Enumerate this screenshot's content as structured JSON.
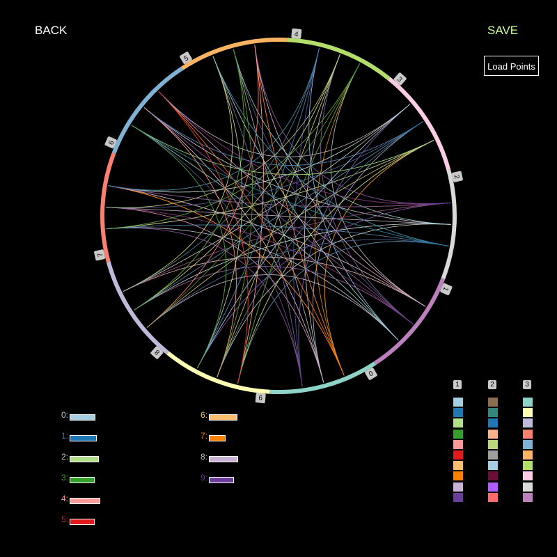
{
  "header": {
    "back_label": "BACK",
    "save_label": "SAVE",
    "load_label": "Load Points"
  },
  "ring": {
    "segments": [
      {
        "label": "0",
        "color": "#8dd3c7"
      },
      {
        "label": "1",
        "color": "#bc80bd"
      },
      {
        "label": "2",
        "color": "#d9d9d9"
      },
      {
        "label": "3",
        "color": "#fccde5"
      },
      {
        "label": "4",
        "color": "#b3de69"
      },
      {
        "label": "5",
        "color": "#fdb462"
      },
      {
        "label": "6",
        "color": "#80b1d3"
      },
      {
        "label": "7",
        "color": "#fb8072"
      },
      {
        "label": "8",
        "color": "#bebada"
      },
      {
        "label": "9",
        "color": "#ffffb3"
      }
    ],
    "markers": [
      "0",
      "1",
      "2",
      "3",
      "4",
      "5",
      "6",
      "7",
      "8",
      "9"
    ]
  },
  "legend": [
    {
      "label": "0:",
      "color": "#a6cee3"
    },
    {
      "label": "1:",
      "color": "#1f78b4"
    },
    {
      "label": "2:",
      "color": "#b2df8a"
    },
    {
      "label": "3:",
      "color": "#33a02c"
    },
    {
      "label": "4:",
      "color": "#fb9a99"
    },
    {
      "label": "5:",
      "color": "#e31a1c"
    },
    {
      "label": "6:",
      "color": "#fdbf6f"
    },
    {
      "label": "7:",
      "color": "#ff7f00"
    },
    {
      "label": "8:",
      "color": "#cab2d6"
    },
    {
      "label": "9:",
      "color": "#6a3d9a"
    }
  ],
  "legend_fill": [
    0.78,
    0.82,
    0.87,
    0.75,
    0.92,
    0.75,
    0.85,
    0.5,
    0.88,
    0.75
  ],
  "palettes": [
    {
      "label": "1",
      "colors": [
        "#a6cee3",
        "#1f78b4",
        "#b2df8a",
        "#33a02c",
        "#fb9a99",
        "#e31a1c",
        "#fdbf6f",
        "#ff7f00",
        "#cab2d6",
        "#6a3d9a"
      ]
    },
    {
      "label": "2",
      "colors": [
        "#8c6d4f",
        "#35877d",
        "#1f78b4",
        "#fdb08a",
        "#b8d77a",
        "#9e9e9e",
        "#a6cee3",
        "#6b0f3a",
        "#b15cff",
        "#ff6b6b"
      ]
    },
    {
      "label": "3",
      "colors": [
        "#8dd3c7",
        "#ffffb3",
        "#bebada",
        "#fb8072",
        "#80b1d3",
        "#fdb462",
        "#b3de69",
        "#fccde5",
        "#d9d9d9",
        "#bc80bd"
      ]
    }
  ]
}
